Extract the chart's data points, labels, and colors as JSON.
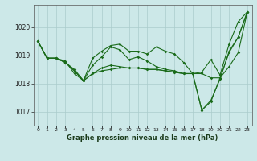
{
  "title": "Graphe pression niveau de la mer (hPa)",
  "bg_color": "#cce8e8",
  "grid_color": "#aacccc",
  "line_color": "#1a6b1a",
  "ylim": [
    1016.5,
    1020.8
  ],
  "yticks": [
    1017,
    1018,
    1019,
    1020
  ],
  "x_ticks": [
    0,
    1,
    2,
    3,
    4,
    5,
    6,
    7,
    8,
    9,
    10,
    11,
    12,
    13,
    14,
    15,
    16,
    17,
    18,
    19,
    20,
    21,
    22,
    23
  ],
  "lines": [
    [
      1019.5,
      1018.9,
      1018.9,
      1018.8,
      1018.35,
      1018.1,
      1018.9,
      1019.15,
      1019.35,
      1019.4,
      1019.15,
      1019.15,
      1019.05,
      1019.3,
      1019.15,
      1019.05,
      1018.75,
      1018.35,
      1018.4,
      1018.85,
      1018.3,
      1019.4,
      1020.2,
      1020.55
    ],
    [
      1019.5,
      1018.9,
      1018.9,
      1018.75,
      1018.45,
      1018.1,
      1018.65,
      1018.95,
      1019.3,
      1019.2,
      1018.85,
      1018.95,
      1018.8,
      1018.6,
      1018.5,
      1018.45,
      1018.35,
      1018.35,
      1017.05,
      1017.4,
      1018.15,
      1019.15,
      1019.65,
      1020.55
    ],
    [
      1019.5,
      1018.9,
      1018.9,
      1018.75,
      1018.5,
      1018.1,
      1018.35,
      1018.55,
      1018.65,
      1018.6,
      1018.55,
      1018.55,
      1018.5,
      1018.5,
      1018.45,
      1018.4,
      1018.35,
      1018.35,
      1018.35,
      1018.2,
      1018.2,
      1018.6,
      1019.1,
      1020.55
    ],
    [
      1019.5,
      1018.9,
      1018.9,
      1018.75,
      1018.45,
      1018.1,
      1018.35,
      1018.45,
      1018.5,
      1018.55,
      1018.55,
      1018.55,
      1018.5,
      1018.5,
      1018.45,
      1018.4,
      1018.35,
      1018.35,
      1017.05,
      1017.35,
      1018.2,
      1019.1,
      1019.65,
      1020.55
    ]
  ]
}
